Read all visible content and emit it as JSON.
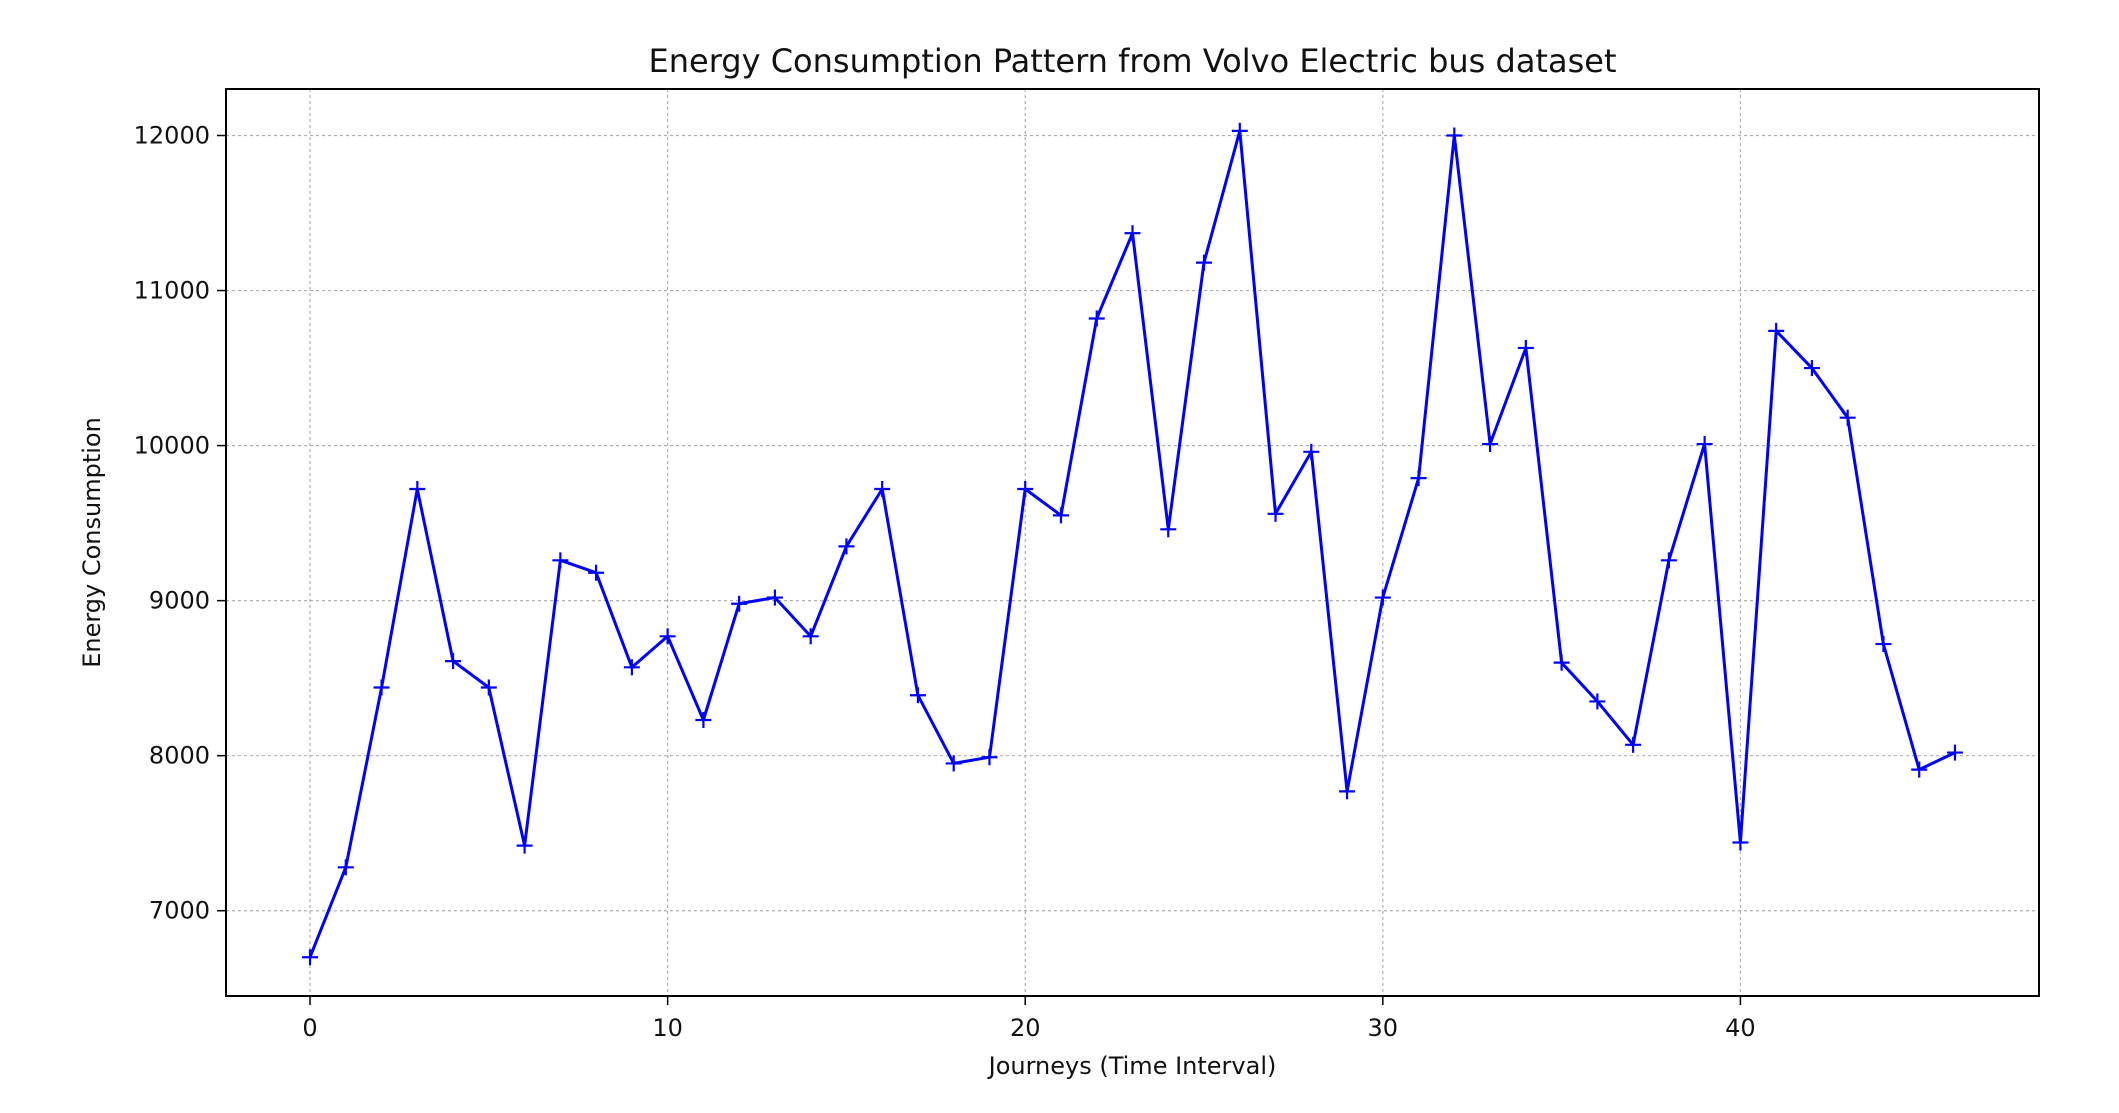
{
  "chart_data": {
    "type": "line",
    "title": "Energy Consumption Pattern from Volvo Electric bus dataset",
    "xlabel": "Journeys (Time Interval)",
    "ylabel": "Energy Consumption",
    "xlim": [
      -2.35,
      48.35
    ],
    "ylim": [
      6450,
      12300
    ],
    "xticks": [
      0,
      10,
      20,
      30,
      40
    ],
    "yticks": [
      7000,
      8000,
      9000,
      10000,
      11000,
      12000
    ],
    "grid": true,
    "legend": "none",
    "series": [
      {
        "color": "#0000ff",
        "marker": "plus",
        "x": [
          0,
          1,
          2,
          3,
          4,
          5,
          6,
          7,
          8,
          9,
          10,
          11,
          12,
          13,
          14,
          15,
          16,
          17,
          18,
          19,
          20,
          21,
          22,
          23,
          24,
          25,
          26,
          27,
          28,
          29,
          30,
          31,
          32,
          33,
          34,
          35,
          36,
          37,
          38,
          39,
          40,
          41,
          42,
          43,
          44,
          45,
          46
        ],
        "y": [
          6700,
          7280,
          8440,
          9720,
          8610,
          8440,
          7420,
          9260,
          9180,
          8570,
          8770,
          8230,
          8980,
          9020,
          8770,
          9350,
          9720,
          8390,
          7950,
          7990,
          9720,
          9550,
          10820,
          11370,
          9460,
          11180,
          12030,
          9560,
          9960,
          7770,
          9020,
          9790,
          12000,
          10010,
          10630,
          8600,
          8350,
          8070,
          9260,
          10010,
          7440,
          10740,
          10500,
          10180,
          8720,
          7910,
          8020
        ]
      }
    ]
  }
}
